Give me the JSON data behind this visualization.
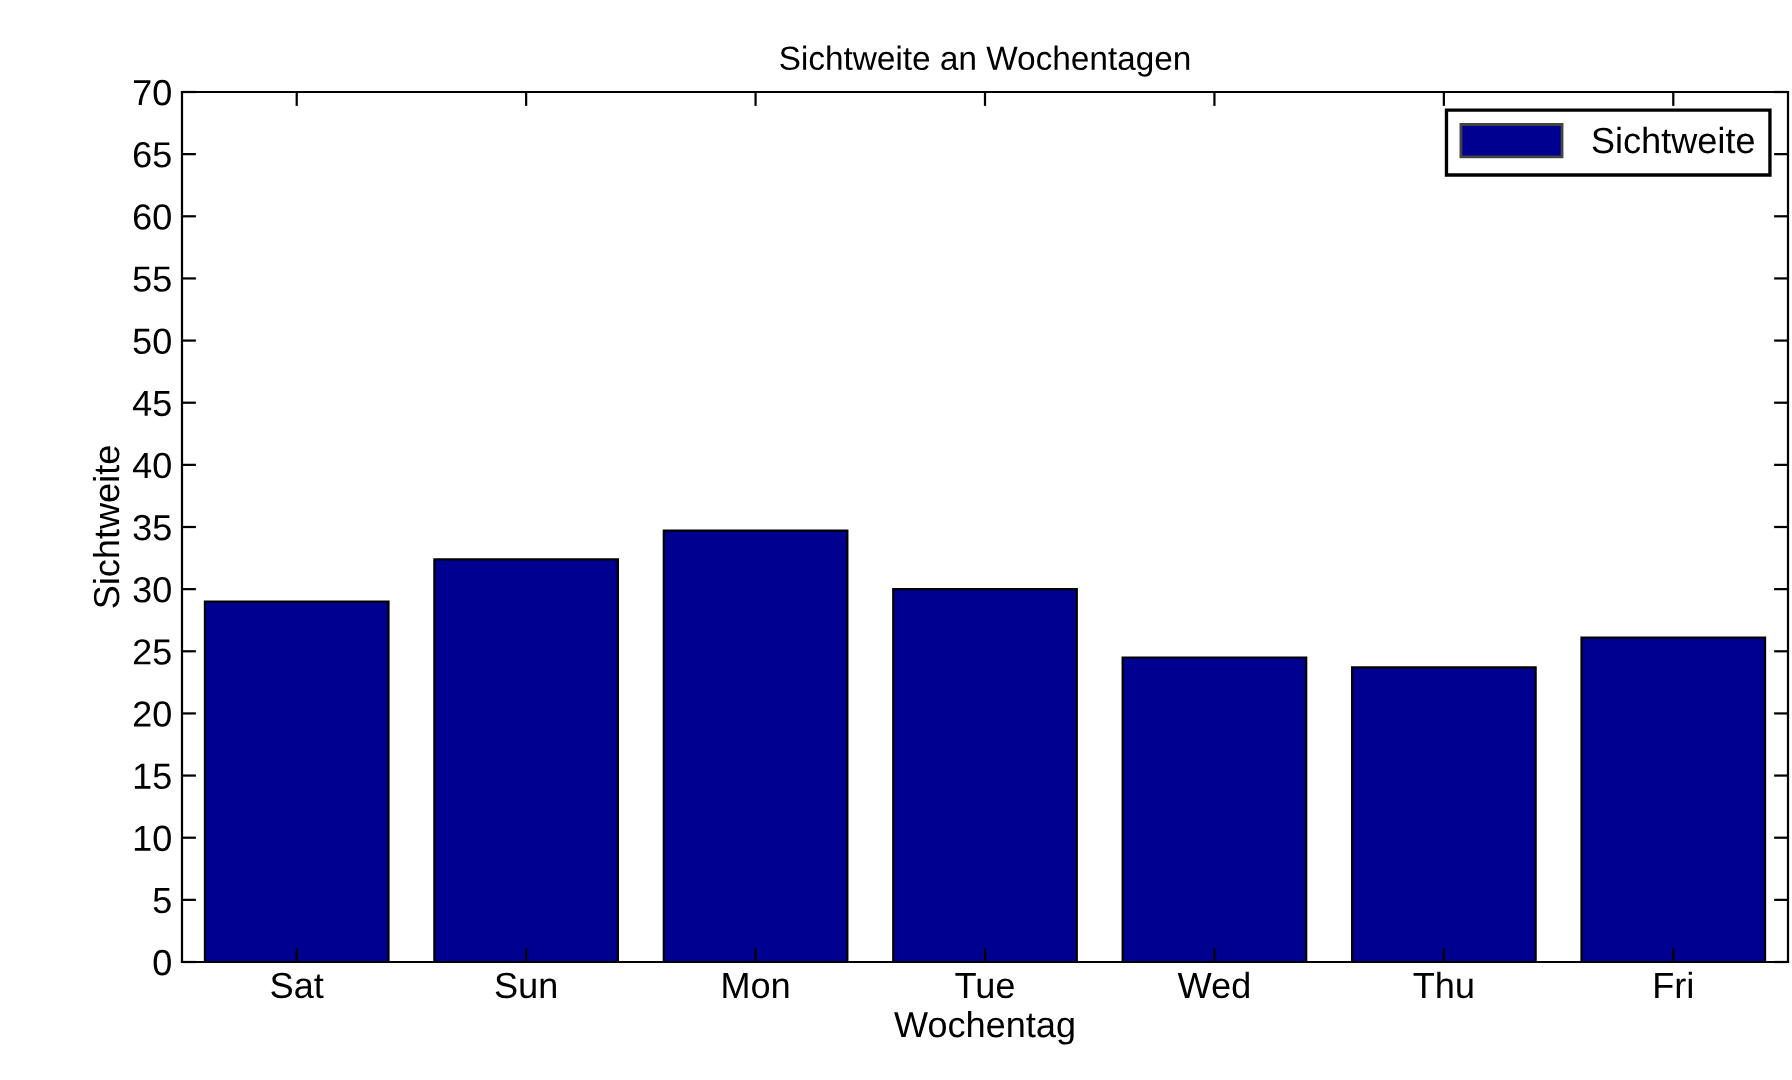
{
  "chart_data": {
    "type": "bar",
    "title": "Sichtweite an Wochentagen",
    "xlabel": "Wochentag",
    "ylabel": "Sichtweite",
    "categories": [
      "Sat",
      "Sun",
      "Mon",
      "Tue",
      "Wed",
      "Thu",
      "Fri"
    ],
    "series": [
      {
        "name": "Sichtweite",
        "color": "#000090",
        "values": [
          29.0,
          32.4,
          34.7,
          30.0,
          24.5,
          23.7,
          26.1
        ]
      }
    ],
    "ylim": [
      0,
      70
    ],
    "yticks": [
      0,
      5,
      10,
      15,
      20,
      25,
      30,
      35,
      40,
      45,
      50,
      55,
      60,
      65,
      70
    ],
    "grid": false,
    "legend": "top right"
  }
}
